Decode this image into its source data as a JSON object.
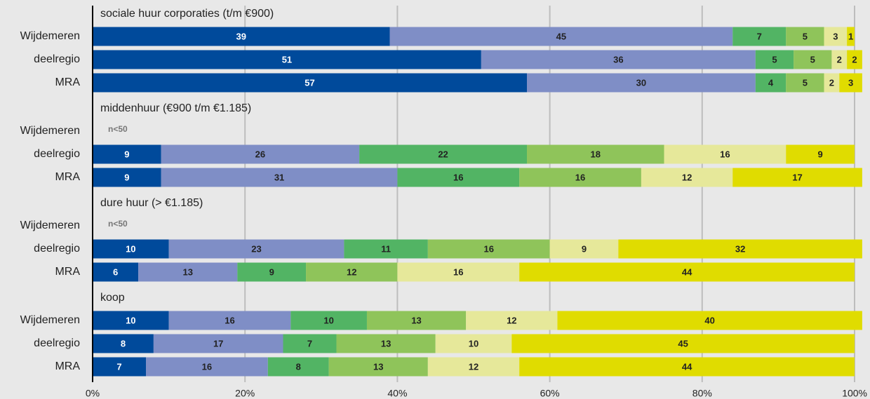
{
  "chart_data": {
    "type": "bar",
    "colors": [
      "#004a9b",
      "#7f8ec6",
      "#52b464",
      "#8fc45a",
      "#e6e89a",
      "#e0dc00"
    ],
    "label_colors": [
      "#ffffff",
      "#222222",
      "#222222",
      "#222222",
      "#222222",
      "#222222"
    ],
    "xlim": [
      0,
      100
    ],
    "xticks": [
      {
        "value": 0,
        "label": "0%"
      },
      {
        "value": 20,
        "label": "20%"
      },
      {
        "value": 40,
        "label": "40%"
      },
      {
        "value": 60,
        "label": "60%"
      },
      {
        "value": 80,
        "label": "80%"
      },
      {
        "value": 100,
        "label": "100%"
      }
    ],
    "grid": true,
    "groups": [
      {
        "title": "sociale huur corporaties (t/m €900)",
        "rows": [
          {
            "label": "Wijdemeren",
            "values": [
              39,
              45,
              7,
              5,
              3,
              1
            ]
          },
          {
            "label": "deelregio",
            "values": [
              51,
              36,
              5,
              5,
              2,
              2
            ]
          },
          {
            "label": "MRA",
            "values": [
              57,
              30,
              4,
              5,
              2,
              3
            ]
          }
        ]
      },
      {
        "title": "middenhuur (€900 t/m €1.185)",
        "rows": [
          {
            "label": "Wijdemeren",
            "note": "n<50"
          },
          {
            "label": "deelregio",
            "values": [
              9,
              26,
              22,
              18,
              16,
              9
            ]
          },
          {
            "label": "MRA",
            "values": [
              9,
              31,
              16,
              16,
              12,
              17
            ]
          }
        ]
      },
      {
        "title": "dure huur (> €1.185)",
        "rows": [
          {
            "label": "Wijdemeren",
            "note": "n<50"
          },
          {
            "label": "deelregio",
            "values": [
              10,
              23,
              11,
              16,
              9,
              32
            ]
          },
          {
            "label": "MRA",
            "values": [
              6,
              13,
              9,
              12,
              16,
              44
            ]
          }
        ]
      },
      {
        "title": "koop",
        "rows": [
          {
            "label": "Wijdemeren",
            "values": [
              10,
              16,
              10,
              13,
              12,
              40
            ]
          },
          {
            "label": "deelregio",
            "values": [
              8,
              17,
              7,
              13,
              10,
              45
            ]
          },
          {
            "label": "MRA",
            "values": [
              7,
              16,
              8,
              13,
              12,
              44
            ]
          }
        ]
      }
    ]
  }
}
